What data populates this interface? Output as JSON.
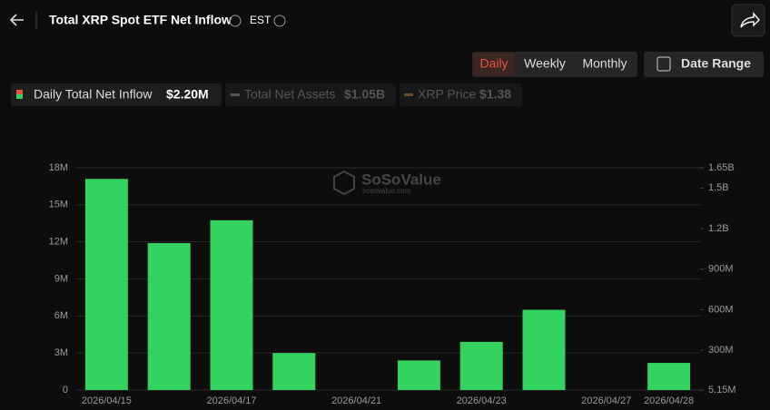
{
  "header": {
    "title": "Total XRP Spot ETF Net Inflow",
    "timezone": "EST"
  },
  "toolbar": {
    "periods": [
      "Daily",
      "Weekly",
      "Monthly"
    ],
    "date_range": "Date Range"
  },
  "legend": {
    "inflow_value": "$2.20M",
    "assets_name": "Total Net Assets",
    "assets_value": "$1.05B",
    "price_name": "XRP Price",
    "price_value": "$1.38"
  },
  "watermark": {
    "brand": "SoSoValue",
    "site": "sosovalue.com"
  },
  "chart_data": {
    "type": "bar",
    "categories": [
      "2026/04/15",
      null,
      "2026/04/17",
      null,
      "2026/04/21",
      null,
      "2026/04/23",
      null,
      "2026/04/27",
      "2026/04/28"
    ],
    "series": [
      {
        "name": "Daily Total Net Inflow",
        "color": "#33d35f",
        "values": [
          17100000,
          11900000,
          13750000,
          3000000,
          0,
          2400000,
          3900000,
          6500000,
          0,
          2200000
        ]
      }
    ],
    "ylim": [
      0,
      18000000
    ],
    "yticks": [
      0,
      {
        "value": 3000000,
        "label": "3M"
      },
      {
        "value": 6000000,
        "label": "6M"
      },
      {
        "value": 9000000,
        "label": "9M"
      },
      {
        "value": 12000000,
        "label": "12M"
      },
      {
        "value": 15000000,
        "label": "15M"
      },
      {
        "value": 18000000,
        "label": "18M"
      }
    ],
    "y2lim": [
      5150000,
      1650000000
    ],
    "y2ticks": [
      {
        "value": 5150000,
        "label": "5.15M"
      },
      {
        "value": 300000000,
        "label": "300M"
      },
      {
        "value": 600000000,
        "label": "600M"
      },
      {
        "value": 900000000,
        "label": "900M"
      },
      {
        "value": 1200000000,
        "label": "1.2B"
      },
      {
        "value": 1500000000,
        "label": "1.5B"
      },
      {
        "value": 1650000000,
        "label": "1.65B"
      }
    ],
    "grid": true
  }
}
